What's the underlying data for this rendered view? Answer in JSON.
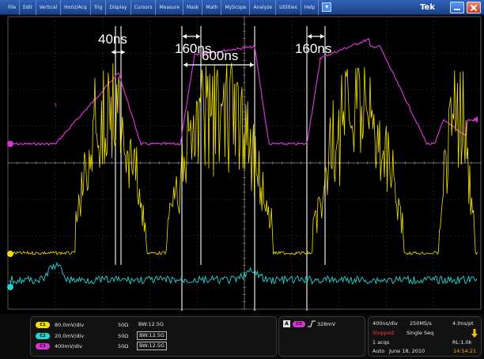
{
  "menu": {
    "items": [
      "File",
      "Edit",
      "Vertical",
      "Horiz/Acq",
      "Trig",
      "Display",
      "Cursors",
      "Measure",
      "Mask",
      "Math",
      "MyScope",
      "Analyze",
      "Utilities",
      "Help"
    ],
    "brand": "Tek"
  },
  "annotations": {
    "a1": "40ns",
    "a2": "160ns",
    "a3": "600ns",
    "a4": "160ns"
  },
  "channels": [
    {
      "badge": "C1",
      "scale": "80.0mV/div",
      "impedance": "50Ω",
      "bandwidth": "BW:12.5G",
      "color": "#f2e000"
    },
    {
      "badge": "C2",
      "scale": "20.0mV/div",
      "impedance": "50Ω",
      "bandwidth": "BW:12.5G",
      "color": "#22d5d5"
    },
    {
      "badge": "C3",
      "scale": "400mV/div",
      "impedance": "50Ω",
      "bandwidth": "BW:12.5G",
      "color": "#d633d6"
    }
  ],
  "trigger": {
    "mode": "A",
    "source": "C3",
    "level": "328mV"
  },
  "timebase": {
    "horizontal": "400ns/div",
    "sample_rate": "250MS/s",
    "resolution": "4.0ns/pt",
    "state": "Stopped",
    "sequence": "Single Seq",
    "acqs": "1 acqs",
    "record_length": "RL:1.0k",
    "mode": "Auto",
    "date": "June 18, 2010",
    "time": "14:54:21"
  },
  "colors": {
    "ch1": "#f2e000",
    "ch2": "#22d5d5",
    "ch3": "#d633d6",
    "grid": "#5a5a5a",
    "menubar": "#2f62b8"
  }
}
